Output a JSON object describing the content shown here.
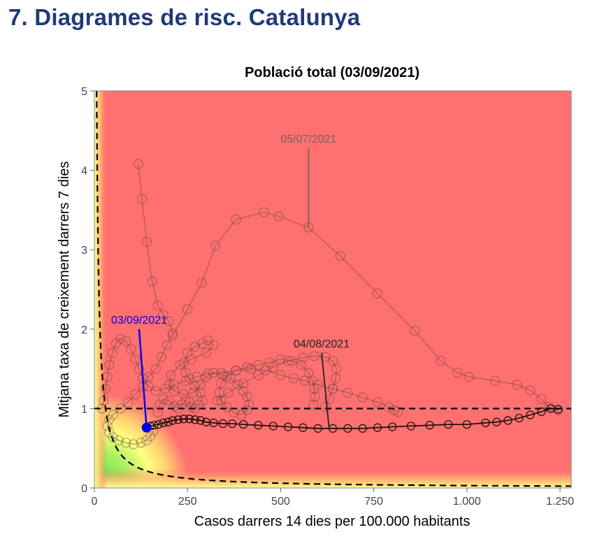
{
  "page": {
    "title": "7. Diagrames de risc. Catalunya"
  },
  "colors": {
    "title": "#1f3a7a",
    "high_risk": "#ff7070",
    "mid_risk": "#ffff80",
    "low_risk": "#40e040",
    "annot_blue": "#0000e6",
    "trajectory": "#000000"
  },
  "chart_data": {
    "type": "scatter",
    "title": "Població total (03/09/2021)",
    "xlabel": "Casos darrers 14 dies per 100.000 habitants",
    "ylabel": "Mitjana taxa de creixement darrers 7 dies",
    "xlim": [
      0,
      1280
    ],
    "ylim": [
      0,
      5
    ],
    "x_ticks": [
      0,
      250,
      500,
      750,
      1000,
      1250
    ],
    "x_tick_labels": [
      "0",
      "250",
      "500",
      "750",
      "1.000",
      "1.250"
    ],
    "y_ticks": [
      0,
      1,
      2,
      3,
      4,
      5
    ],
    "y_tick_labels": [
      "0",
      "1",
      "2",
      "3",
      "4",
      "5"
    ],
    "background": "risk gradient: green near origin, yellow band, red high risk",
    "reference_lines": [
      {
        "kind": "horizontal",
        "y": 1,
        "style": "dashed"
      },
      {
        "kind": "hyperbola",
        "formula": "y = 30 / x",
        "style": "dashed"
      }
    ],
    "series": [
      {
        "role": "faded-history",
        "points": [
          [
            118,
            4.08
          ],
          [
            128,
            3.64
          ],
          [
            140,
            3.1
          ],
          [
            155,
            2.6
          ],
          [
            170,
            2.3
          ],
          [
            185,
            2.18
          ],
          [
            200,
            2.1
          ],
          [
            210,
            1.95
          ],
          [
            195,
            1.8
          ],
          [
            180,
            1.65
          ],
          [
            165,
            1.5
          ],
          [
            145,
            1.4
          ],
          [
            130,
            1.28
          ],
          [
            110,
            1.18
          ],
          [
            90,
            1.08
          ],
          [
            70,
            1.0
          ],
          [
            50,
            0.92
          ],
          [
            40,
            0.86
          ],
          [
            35,
            0.78
          ],
          [
            40,
            0.7
          ],
          [
            50,
            0.64
          ],
          [
            65,
            0.6
          ],
          [
            85,
            0.57
          ],
          [
            105,
            0.55
          ],
          [
            125,
            0.57
          ],
          [
            140,
            0.6
          ],
          [
            150,
            0.65
          ],
          [
            158,
            0.72
          ]
        ]
      },
      {
        "role": "faded-wave",
        "points": [
          [
            170,
            0.95
          ],
          [
            175,
            1.05
          ],
          [
            185,
            1.12
          ],
          [
            200,
            1.1
          ],
          [
            215,
            1.03
          ],
          [
            225,
            1.0
          ],
          [
            235,
            1.05
          ],
          [
            245,
            1.1
          ],
          [
            255,
            1.08
          ],
          [
            260,
            1.02
          ],
          [
            270,
            1.0
          ],
          [
            280,
            1.05
          ],
          [
            290,
            1.1
          ],
          [
            285,
            1.2
          ],
          [
            270,
            1.28
          ],
          [
            255,
            1.38
          ],
          [
            245,
            1.45
          ],
          [
            240,
            1.58
          ],
          [
            250,
            1.7
          ],
          [
            270,
            1.78
          ],
          [
            290,
            1.82
          ],
          [
            305,
            1.86
          ],
          [
            320,
            1.8
          ],
          [
            300,
            1.7
          ],
          [
            260,
            1.62
          ],
          [
            230,
            1.55
          ],
          [
            205,
            1.42
          ],
          [
            200,
            1.3
          ],
          [
            215,
            1.22
          ],
          [
            240,
            1.18
          ],
          [
            265,
            1.2
          ],
          [
            285,
            1.3
          ],
          [
            300,
            1.4
          ],
          [
            320,
            1.45
          ],
          [
            345,
            1.42
          ],
          [
            365,
            1.38
          ],
          [
            385,
            1.3
          ],
          [
            400,
            1.22
          ],
          [
            410,
            1.15
          ],
          [
            415,
            1.05
          ],
          [
            410,
            0.98
          ],
          [
            395,
            0.92
          ],
          [
            375,
            0.95
          ],
          [
            355,
            1.02
          ],
          [
            340,
            1.1
          ],
          [
            335,
            1.2
          ],
          [
            340,
            1.32
          ],
          [
            355,
            1.4
          ],
          [
            380,
            1.48
          ],
          [
            410,
            1.52
          ],
          [
            440,
            1.55
          ],
          [
            470,
            1.58
          ],
          [
            500,
            1.62
          ],
          [
            530,
            1.6
          ],
          [
            555,
            1.55
          ],
          [
            575,
            1.45
          ],
          [
            585,
            1.35
          ],
          [
            590,
            1.25
          ],
          [
            592,
            1.15
          ],
          [
            588,
            1.05
          ]
        ]
      },
      {
        "role": "faded-wave-2",
        "points": [
          [
            20,
            1.0
          ],
          [
            25,
            1.1
          ],
          [
            30,
            1.25
          ],
          [
            35,
            1.4
          ],
          [
            40,
            1.55
          ],
          [
            48,
            1.7
          ],
          [
            58,
            1.82
          ],
          [
            70,
            1.88
          ],
          [
            85,
            1.85
          ],
          [
            98,
            1.75
          ],
          [
            110,
            1.62
          ],
          [
            120,
            1.5
          ],
          [
            130,
            1.38
          ],
          [
            145,
            1.28
          ],
          [
            165,
            1.22
          ],
          [
            190,
            1.25
          ],
          [
            215,
            1.3
          ],
          [
            245,
            1.35
          ],
          [
            275,
            1.4
          ],
          [
            305,
            1.44
          ],
          [
            340,
            1.45
          ],
          [
            380,
            1.48
          ],
          [
            420,
            1.5
          ],
          [
            460,
            1.48
          ],
          [
            500,
            1.42
          ],
          [
            535,
            1.38
          ],
          [
            565,
            1.35
          ],
          [
            600,
            1.3
          ],
          [
            640,
            1.25
          ],
          [
            680,
            1.2
          ],
          [
            720,
            1.14
          ],
          [
            760,
            1.08
          ],
          [
            790,
            1.02
          ],
          [
            805,
            0.98
          ],
          [
            815,
            0.96
          ]
        ]
      },
      {
        "role": "faded-july-wave",
        "points": [
          [
            210,
            1.92
          ],
          [
            250,
            2.25
          ],
          [
            288,
            2.58
          ],
          [
            325,
            3.05
          ],
          [
            380,
            3.38
          ],
          [
            455,
            3.47
          ],
          [
            495,
            3.42
          ],
          [
            575,
            3.28
          ],
          [
            660,
            2.92
          ],
          [
            760,
            2.45
          ],
          [
            860,
            1.98
          ],
          [
            930,
            1.6
          ],
          [
            975,
            1.45
          ],
          [
            1005,
            1.4
          ],
          [
            1075,
            1.35
          ],
          [
            1135,
            1.3
          ],
          [
            1170,
            1.23
          ],
          [
            1200,
            1.12
          ],
          [
            1220,
            1.02
          ],
          [
            1245,
            0.98
          ]
        ]
      },
      {
        "role": "faded-august",
        "points": [
          [
            330,
            1.1
          ],
          [
            360,
            1.2
          ],
          [
            400,
            1.32
          ],
          [
            440,
            1.42
          ],
          [
            480,
            1.52
          ],
          [
            520,
            1.6
          ],
          [
            560,
            1.64
          ],
          [
            590,
            1.66
          ],
          [
            620,
            1.65
          ],
          [
            640,
            1.6
          ],
          [
            650,
            1.5
          ],
          [
            648,
            1.38
          ],
          [
            640,
            1.25
          ],
          [
            630,
            1.12
          ],
          [
            620,
            1.02
          ]
        ]
      },
      {
        "role": "recent",
        "points": [
          [
            1245,
            0.99
          ],
          [
            1225,
            1.0
          ],
          [
            1200,
            0.96
          ],
          [
            1170,
            0.92
          ],
          [
            1140,
            0.88
          ],
          [
            1110,
            0.85
          ],
          [
            1080,
            0.83
          ],
          [
            1050,
            0.82
          ],
          [
            1000,
            0.8
          ],
          [
            950,
            0.8
          ],
          [
            900,
            0.79
          ],
          [
            850,
            0.78
          ],
          [
            800,
            0.77
          ],
          [
            760,
            0.76
          ],
          [
            720,
            0.75
          ],
          [
            680,
            0.75
          ],
          [
            640,
            0.75
          ],
          [
            600,
            0.75
          ],
          [
            560,
            0.76
          ],
          [
            520,
            0.77
          ],
          [
            480,
            0.78
          ],
          [
            440,
            0.79
          ],
          [
            400,
            0.8
          ],
          [
            370,
            0.81
          ],
          [
            345,
            0.81
          ],
          [
            320,
            0.82
          ],
          [
            300,
            0.83
          ],
          [
            285,
            0.85
          ],
          [
            270,
            0.86
          ],
          [
            255,
            0.87
          ],
          [
            240,
            0.87
          ],
          [
            225,
            0.86
          ],
          [
            210,
            0.85
          ],
          [
            198,
            0.83
          ],
          [
            185,
            0.82
          ],
          [
            172,
            0.8
          ],
          [
            160,
            0.79
          ],
          [
            150,
            0.78
          ]
        ]
      }
    ],
    "highlight_point": {
      "x": 140,
      "y": 0.76
    },
    "annotations": [
      {
        "text": "05/07/2021",
        "x": 575,
        "y": 3.28,
        "tx": 575,
        "ty": 4.28
      },
      {
        "text": "03/09/2021",
        "x": 140,
        "y": 0.76,
        "tx": 120,
        "ty": 2.0,
        "color": "#0000e6"
      },
      {
        "text": "04/08/2021",
        "x": 630,
        "y": 0.75,
        "tx": 610,
        "ty": 1.7
      }
    ]
  }
}
